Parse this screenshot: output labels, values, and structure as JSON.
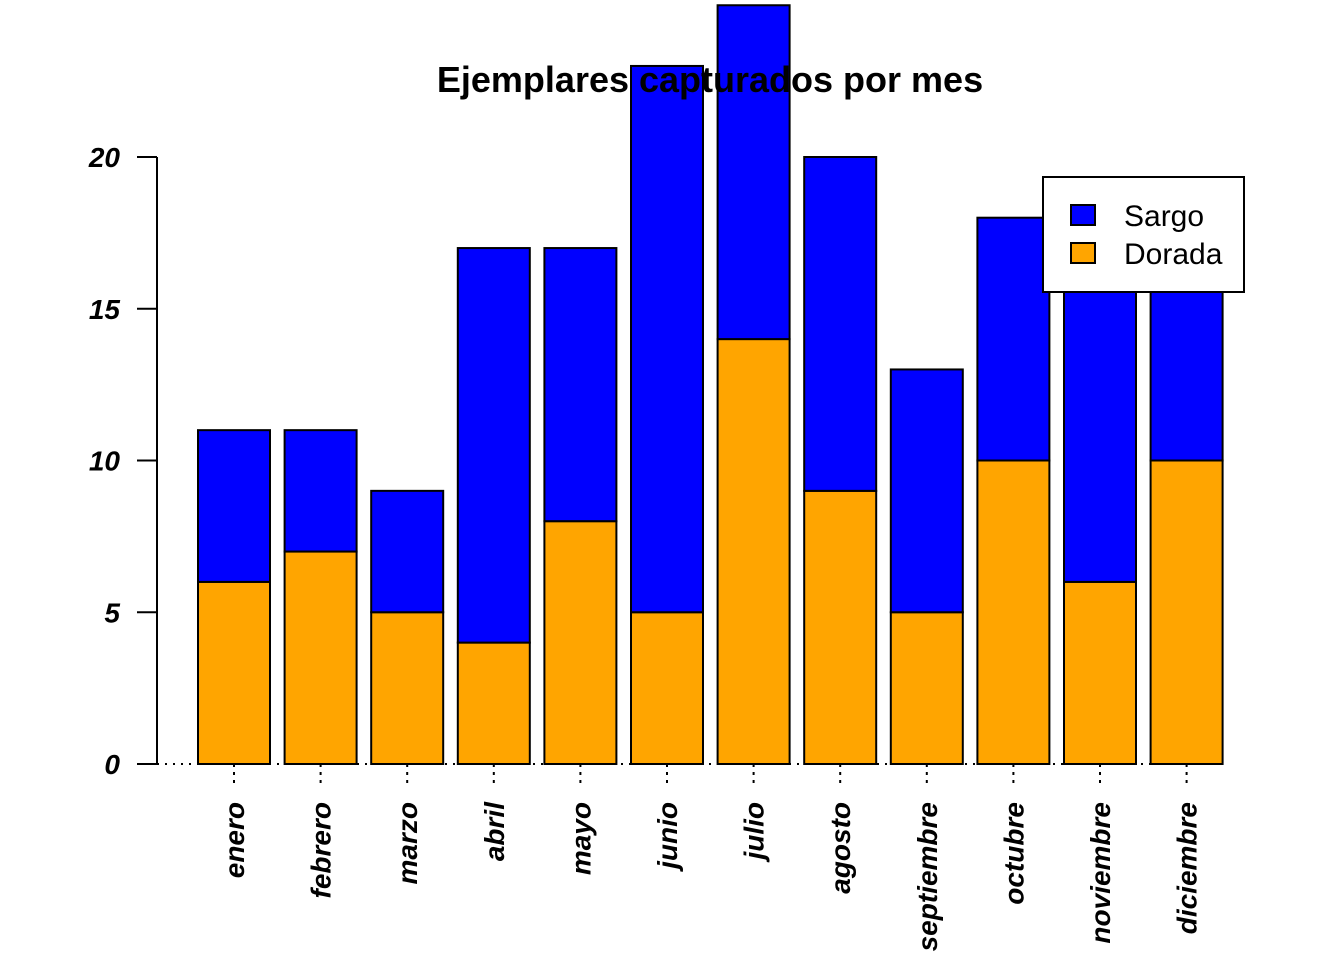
{
  "chart_data": {
    "type": "bar",
    "stacked": true,
    "title": "Ejemplares capturados por mes",
    "xlabel": "",
    "ylabel": "",
    "ylim": [
      0,
      25
    ],
    "yticks": [
      0,
      5,
      10,
      15,
      20
    ],
    "grid": false,
    "legend_position": "top-right",
    "categories": [
      "enero",
      "febrero",
      "marzo",
      "abril",
      "mayo",
      "junio",
      "julio",
      "agosto",
      "septiembre",
      "octubre",
      "noviembre",
      "diciembre"
    ],
    "series": [
      {
        "name": "Dorada",
        "color": "#FFA500",
        "values": [
          6,
          7,
          5,
          4,
          8,
          5,
          14,
          9,
          5,
          10,
          6,
          10
        ]
      },
      {
        "name": "Sargo",
        "color": "#0000FF",
        "values": [
          5,
          4,
          4,
          13,
          9,
          18,
          11,
          11,
          8,
          8,
          11,
          6
        ]
      }
    ],
    "legend": [
      "Sargo",
      "Dorada"
    ]
  }
}
